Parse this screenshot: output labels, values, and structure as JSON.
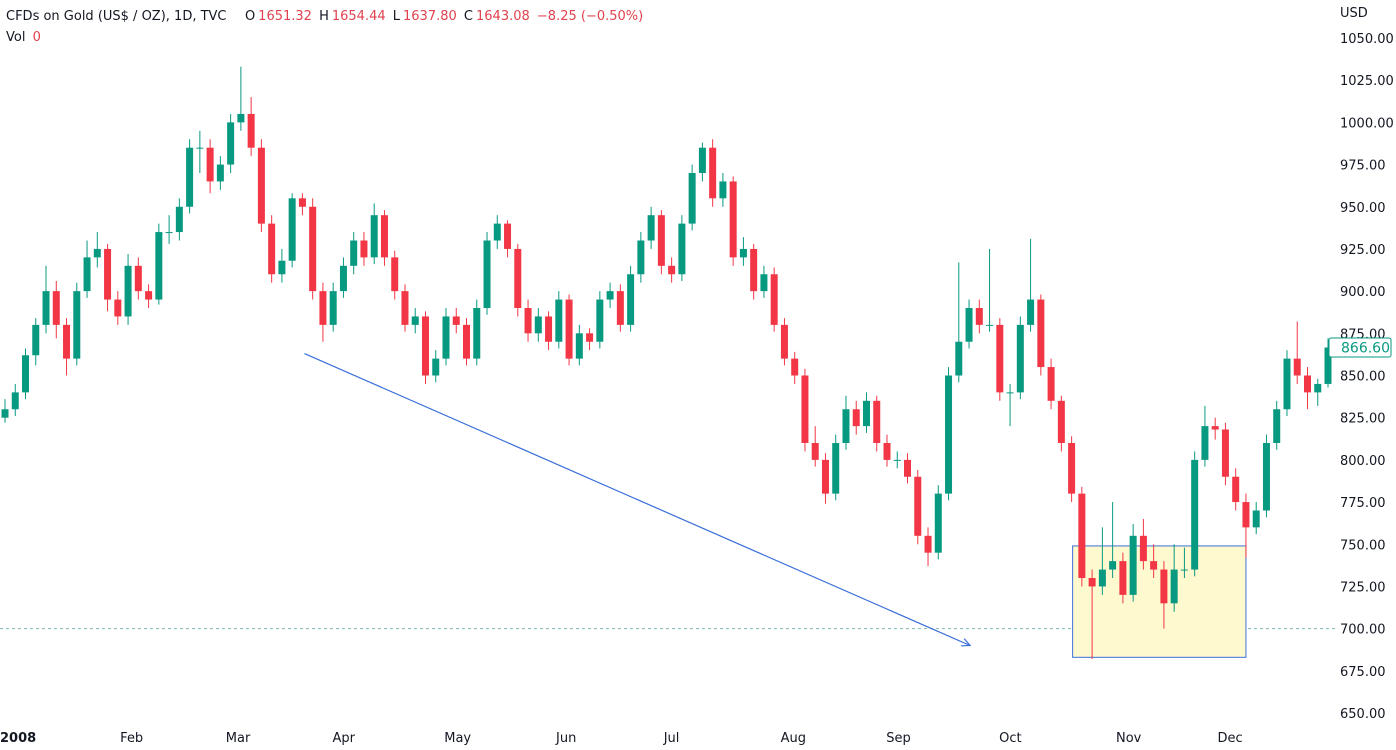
{
  "header": {
    "symbol": "CFDs on Gold (US$ / OZ), 1D, TVC",
    "o_label": "O",
    "o": "1651.32",
    "h_label": "H",
    "h": "1654.44",
    "l_label": "L",
    "l": "1637.80",
    "c_label": "C",
    "c": "1643.08",
    "change": "−8.25 (−0.50%)",
    "vol_label": "Vol",
    "vol": "0"
  },
  "colors": {
    "up": "#089981",
    "down": "#f23645",
    "drawing": "#3a6fd8",
    "box_fill": "#fff9cf",
    "box_stroke": "#3a6fd8"
  },
  "chart_data": {
    "type": "candlestick",
    "title": "CFDs on Gold (US$ / OZ), 1D, TVC",
    "ylabel": "USD",
    "ylim": [
      650,
      1050
    ],
    "yticks": [
      "650.00",
      "675.00",
      "700.00",
      "725.00",
      "750.00",
      "775.00",
      "800.00",
      "825.00",
      "850.00",
      "875.00",
      "900.00",
      "925.00",
      "950.00",
      "975.00",
      "1000.00",
      "1025.00",
      "1050.00"
    ],
    "xticks": [
      {
        "label": "2008",
        "index": 1
      },
      {
        "label": "Feb",
        "index": 12.4
      },
      {
        "label": "Mar",
        "index": 22.7
      },
      {
        "label": "Apr",
        "index": 33.1
      },
      {
        "label": "May",
        "index": 44
      },
      {
        "label": "Jun",
        "index": 54.9
      },
      {
        "label": "Jul",
        "index": 65.4
      },
      {
        "label": "Aug",
        "index": 76.8
      },
      {
        "label": "Sep",
        "index": 87.1
      },
      {
        "label": "Oct",
        "index": 98.1
      },
      {
        "label": "Nov",
        "index": 109.5
      },
      {
        "label": "Dec",
        "index": 119.4
      }
    ],
    "last_price": "866.60",
    "last_price_value": 866.6,
    "reference_line": 700,
    "trend_line": {
      "from": [
        29.2,
        863
      ],
      "to": [
        94.1,
        690
      ]
    },
    "box": {
      "from_index": 104.1,
      "to_index": 121,
      "top": 749,
      "bottom": 683
    },
    "candles": [
      [
        825,
        836,
        822,
        830
      ],
      [
        830,
        845,
        826,
        840
      ],
      [
        840,
        866,
        836,
        862
      ],
      [
        862,
        884,
        856,
        880
      ],
      [
        880,
        915,
        875,
        900
      ],
      [
        900,
        906,
        872,
        880
      ],
      [
        880,
        884,
        850,
        860
      ],
      [
        860,
        905,
        856,
        900
      ],
      [
        900,
        930,
        896,
        920
      ],
      [
        920,
        935,
        914,
        925
      ],
      [
        925,
        928,
        888,
        895
      ],
      [
        895,
        900,
        880,
        885
      ],
      [
        885,
        922,
        880,
        915
      ],
      [
        915,
        920,
        895,
        900
      ],
      [
        900,
        904,
        890,
        895
      ],
      [
        895,
        940,
        892,
        935
      ],
      [
        935,
        945,
        928,
        935
      ],
      [
        935,
        955,
        930,
        950
      ],
      [
        950,
        990,
        946,
        985
      ],
      [
        985,
        995,
        970,
        985
      ],
      [
        985,
        990,
        958,
        965
      ],
      [
        965,
        980,
        960,
        975
      ],
      [
        975,
        1005,
        970,
        1000
      ],
      [
        1000,
        1033,
        995,
        1005
      ],
      [
        1005,
        1015,
        980,
        985
      ],
      [
        985,
        990,
        935,
        940
      ],
      [
        940,
        945,
        905,
        910
      ],
      [
        910,
        925,
        905,
        918
      ],
      [
        918,
        958,
        914,
        955
      ],
      [
        955,
        958,
        945,
        950
      ],
      [
        950,
        955,
        895,
        900
      ],
      [
        900,
        905,
        870,
        880
      ],
      [
        880,
        905,
        876,
        900
      ],
      [
        900,
        920,
        896,
        915
      ],
      [
        915,
        935,
        910,
        930
      ],
      [
        930,
        935,
        915,
        920
      ],
      [
        920,
        952,
        916,
        945
      ],
      [
        945,
        948,
        915,
        920
      ],
      [
        920,
        924,
        895,
        900
      ],
      [
        900,
        904,
        876,
        880
      ],
      [
        880,
        890,
        875,
        885
      ],
      [
        885,
        888,
        845,
        850
      ],
      [
        850,
        865,
        846,
        860
      ],
      [
        860,
        890,
        856,
        885
      ],
      [
        885,
        890,
        875,
        880
      ],
      [
        880,
        884,
        856,
        860
      ],
      [
        860,
        895,
        856,
        890
      ],
      [
        890,
        935,
        886,
        930
      ],
      [
        930,
        945,
        925,
        940
      ],
      [
        940,
        942,
        920,
        925
      ],
      [
        925,
        928,
        885,
        890
      ],
      [
        890,
        895,
        870,
        875
      ],
      [
        875,
        890,
        870,
        885
      ],
      [
        885,
        888,
        865,
        870
      ],
      [
        870,
        900,
        866,
        895
      ],
      [
        895,
        898,
        856,
        860
      ],
      [
        860,
        880,
        856,
        875
      ],
      [
        875,
        878,
        865,
        870
      ],
      [
        870,
        900,
        866,
        895
      ],
      [
        895,
        905,
        890,
        900
      ],
      [
        900,
        904,
        876,
        880
      ],
      [
        880,
        915,
        876,
        910
      ],
      [
        910,
        935,
        905,
        930
      ],
      [
        930,
        950,
        925,
        945
      ],
      [
        945,
        948,
        910,
        915
      ],
      [
        915,
        920,
        905,
        910
      ],
      [
        910,
        945,
        906,
        940
      ],
      [
        940,
        975,
        936,
        970
      ],
      [
        970,
        988,
        965,
        985
      ],
      [
        985,
        990,
        950,
        955
      ],
      [
        955,
        970,
        950,
        965
      ],
      [
        965,
        968,
        915,
        920
      ],
      [
        920,
        932,
        915,
        925
      ],
      [
        925,
        928,
        895,
        900
      ],
      [
        900,
        915,
        896,
        910
      ],
      [
        910,
        914,
        876,
        880
      ],
      [
        880,
        884,
        856,
        860
      ],
      [
        860,
        864,
        845,
        850
      ],
      [
        850,
        854,
        805,
        810
      ],
      [
        810,
        820,
        796,
        800
      ],
      [
        800,
        804,
        774,
        780
      ],
      [
        780,
        815,
        776,
        810
      ],
      [
        810,
        838,
        806,
        830
      ],
      [
        830,
        835,
        815,
        820
      ],
      [
        820,
        840,
        816,
        835
      ],
      [
        835,
        838,
        805,
        810
      ],
      [
        810,
        815,
        796,
        800
      ],
      [
        800,
        805,
        795,
        800
      ],
      [
        800,
        804,
        786,
        790
      ],
      [
        790,
        794,
        750,
        755
      ],
      [
        755,
        760,
        737,
        745
      ],
      [
        745,
        785,
        741,
        780
      ],
      [
        780,
        855,
        776,
        850
      ],
      [
        850,
        917,
        846,
        870
      ],
      [
        870,
        895,
        866,
        890
      ],
      [
        890,
        895,
        875,
        880
      ],
      [
        880,
        925,
        876,
        880
      ],
      [
        880,
        884,
        835,
        840
      ],
      [
        840,
        845,
        820,
        840
      ],
      [
        840,
        885,
        836,
        880
      ],
      [
        880,
        931,
        876,
        895
      ],
      [
        895,
        898,
        850,
        855
      ],
      [
        855,
        860,
        830,
        835
      ],
      [
        835,
        838,
        805,
        810
      ],
      [
        810,
        814,
        775,
        780
      ],
      [
        780,
        784,
        725,
        730
      ],
      [
        730,
        735,
        682,
        725
      ],
      [
        725,
        760,
        720,
        735
      ],
      [
        735,
        775,
        730,
        740
      ],
      [
        740,
        745,
        715,
        720
      ],
      [
        720,
        762,
        716,
        755
      ],
      [
        755,
        765,
        735,
        740
      ],
      [
        740,
        750,
        730,
        735
      ],
      [
        735,
        740,
        700,
        715
      ],
      [
        715,
        750,
        710,
        735
      ],
      [
        735,
        748,
        730,
        735
      ],
      [
        735,
        805,
        731,
        800
      ],
      [
        800,
        832,
        796,
        820
      ],
      [
        820,
        825,
        812,
        818
      ],
      [
        818,
        822,
        785,
        790
      ],
      [
        790,
        795,
        770,
        775
      ],
      [
        775,
        780,
        742,
        760
      ],
      [
        760,
        775,
        756,
        770
      ],
      [
        770,
        815,
        766,
        810
      ],
      [
        810,
        835,
        806,
        830
      ],
      [
        830,
        865,
        826,
        860
      ],
      [
        860,
        882,
        845,
        850
      ],
      [
        850,
        855,
        830,
        840
      ],
      [
        840,
        848,
        832,
        845
      ],
      [
        845,
        872,
        843,
        866.6
      ]
    ]
  }
}
